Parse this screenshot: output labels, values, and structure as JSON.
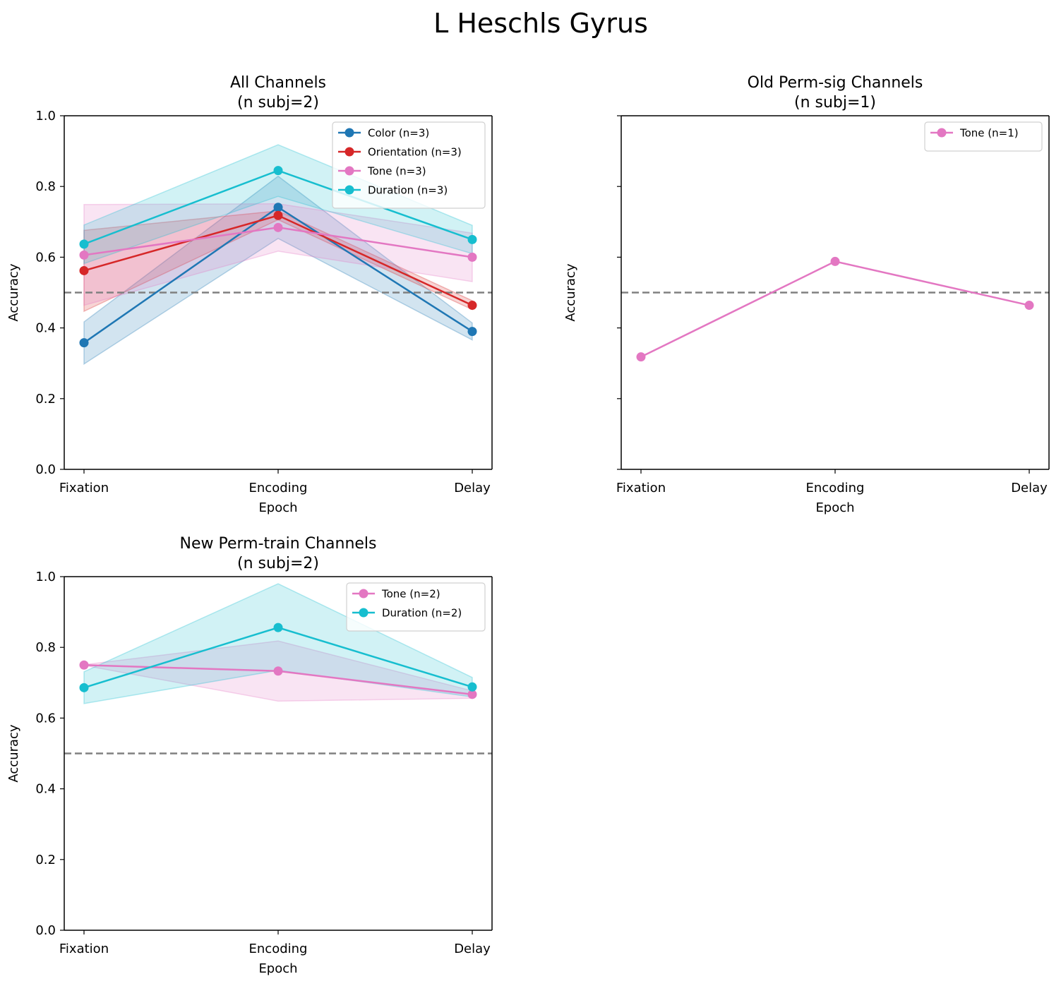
{
  "figure": {
    "title": "L Heschls Gyrus"
  },
  "colors": {
    "Color": "#1f77b4",
    "Orientation": "#d62728",
    "Tone": "#e377c2",
    "Duration": "#17becf",
    "chance": "#808080"
  },
  "chart_data": [
    {
      "type": "line",
      "title": "All Channels\n(n subj=2)",
      "xlabel": "Epoch",
      "ylabel": "Accuracy",
      "categories": [
        "Fixation",
        "Encoding",
        "Delay"
      ],
      "ylim": [
        0,
        1
      ],
      "yticks": [
        "0.0",
        "0.2",
        "0.4",
        "0.6",
        "0.8",
        "1.0"
      ],
      "show_ytick_labels": true,
      "chance_level": 0.5,
      "legend_position": "upper right",
      "series": [
        {
          "name": "Color (n=3)",
          "color_key": "Color",
          "values": [
            0.358,
            0.741,
            0.39
          ],
          "lower": [
            0.298,
            0.653,
            0.366
          ],
          "upper": [
            0.417,
            0.829,
            0.414
          ]
        },
        {
          "name": "Orientation (n=3)",
          "color_key": "Orientation",
          "values": [
            0.562,
            0.718,
            0.464
          ],
          "lower": [
            0.447,
            0.706,
            0.452
          ],
          "upper": [
            0.676,
            0.731,
            0.477
          ]
        },
        {
          "name": "Tone (n=3)",
          "color_key": "Tone",
          "values": [
            0.606,
            0.684,
            0.6
          ],
          "lower": [
            0.464,
            0.617,
            0.531
          ],
          "upper": [
            0.749,
            0.751,
            0.668
          ]
        },
        {
          "name": "Duration (n=3)",
          "color_key": "Duration",
          "values": [
            0.637,
            0.845,
            0.65
          ],
          "lower": [
            0.582,
            0.772,
            0.61
          ],
          "upper": [
            0.691,
            0.918,
            0.69
          ]
        }
      ]
    },
    {
      "type": "line",
      "title": "Old Perm-sig Channels\n(n subj=1)",
      "xlabel": "Epoch",
      "ylabel": "Accuracy",
      "categories": [
        "Fixation",
        "Encoding",
        "Delay"
      ],
      "ylim": [
        0,
        1
      ],
      "yticks": [
        "0.0",
        "0.2",
        "0.4",
        "0.6",
        "0.8",
        "1.0"
      ],
      "show_ytick_labels": false,
      "chance_level": 0.5,
      "legend_position": "upper right",
      "series": [
        {
          "name": "Tone (n=1)",
          "color_key": "Tone",
          "values": [
            0.318,
            0.588,
            0.464
          ]
        }
      ]
    },
    {
      "type": "line",
      "title": "New Perm-train Channels\n(n subj=2)",
      "xlabel": "Epoch",
      "ylabel": "Accuracy",
      "categories": [
        "Fixation",
        "Encoding",
        "Delay"
      ],
      "ylim": [
        0,
        1
      ],
      "yticks": [
        "0.0",
        "0.2",
        "0.4",
        "0.6",
        "0.8",
        "1.0"
      ],
      "show_ytick_labels": true,
      "chance_level": 0.5,
      "legend_position": "upper right",
      "series": [
        {
          "name": "Tone (n=2)",
          "color_key": "Tone",
          "values": [
            0.75,
            0.733,
            0.667
          ],
          "lower": [
            0.749,
            0.648,
            0.656
          ],
          "upper": [
            0.751,
            0.818,
            0.677
          ]
        },
        {
          "name": "Duration (n=2)",
          "color_key": "Duration",
          "values": [
            0.686,
            0.856,
            0.688
          ],
          "lower": [
            0.641,
            0.735,
            0.66
          ],
          "upper": [
            0.731,
            0.98,
            0.715
          ]
        }
      ]
    }
  ]
}
